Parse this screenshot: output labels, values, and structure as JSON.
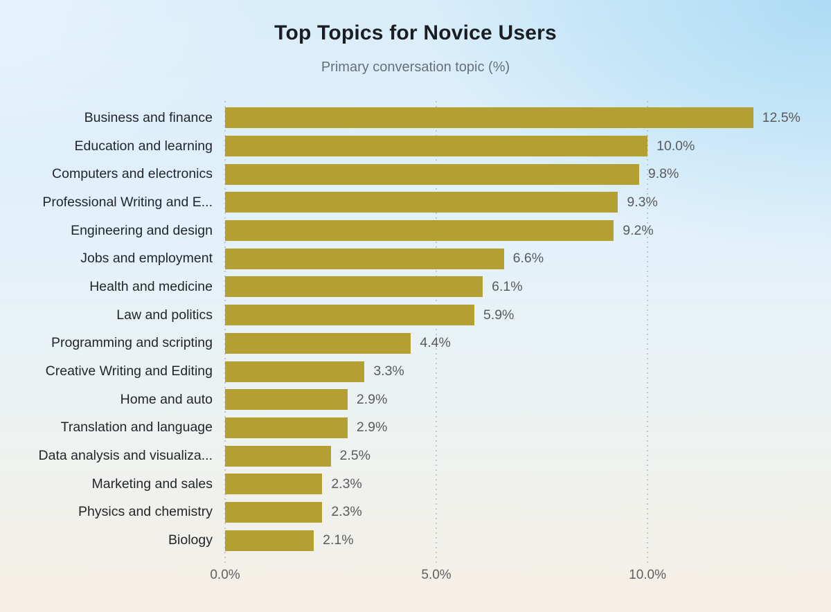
{
  "chart_data": {
    "type": "bar",
    "orientation": "horizontal",
    "title": "Top Topics for Novice Users",
    "subtitle": "Primary conversation topic (%)",
    "categories": [
      "Business and finance",
      "Education and learning",
      "Computers and electronics",
      "Professional Writing and E...",
      "Engineering and design",
      "Jobs and employment",
      "Health and medicine",
      "Law and politics",
      "Programming and scripting",
      "Creative Writing and Editing",
      "Home and auto",
      "Translation and language",
      "Data analysis and visualiza...",
      "Marketing and sales",
      "Physics and chemistry",
      "Biology"
    ],
    "values": [
      12.5,
      10.0,
      9.8,
      9.3,
      9.2,
      6.6,
      6.1,
      5.9,
      4.4,
      3.3,
      2.9,
      2.9,
      2.5,
      2.3,
      2.3,
      2.1
    ],
    "value_labels": [
      "12.5%",
      "10.0%",
      "9.8%",
      "9.3%",
      "9.2%",
      "6.6%",
      "6.1%",
      "5.9%",
      "4.4%",
      "3.3%",
      "2.9%",
      "2.9%",
      "2.5%",
      "2.3%",
      "2.3%",
      "2.1%"
    ],
    "x_ticks": [
      "0.0%",
      "5.0%",
      "10.0%"
    ],
    "x_tick_values": [
      0,
      5,
      10
    ],
    "xlim": [
      0,
      13.49
    ],
    "xlabel": "",
    "ylabel": "",
    "legend": "none",
    "grid": "dotted-vertical",
    "bar_color": "#b49f32",
    "background_top_color": "#cfe9f8",
    "background_bottom_color": "#f5efe6"
  }
}
